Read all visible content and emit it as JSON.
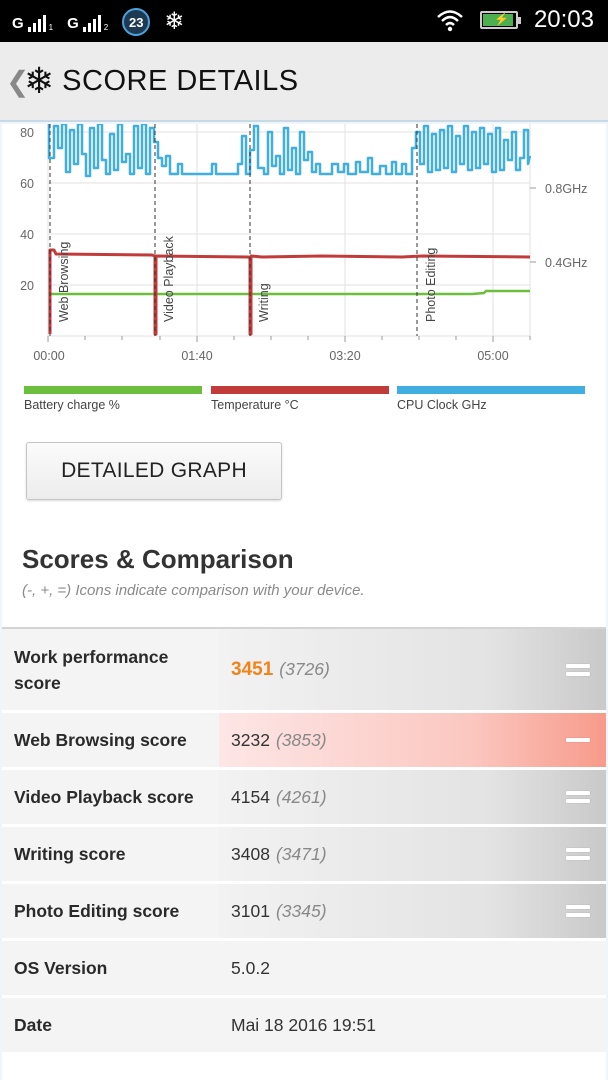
{
  "status_bar": {
    "signal1": "G",
    "signal2": "G",
    "roaming": "R",
    "badge": "23",
    "time": "20:03",
    "icons": [
      "signal-icon",
      "signal-icon",
      "notification-badge-icon",
      "snowflake-icon",
      "wifi-icon",
      "battery-charging-icon"
    ]
  },
  "app_bar": {
    "back": "❮",
    "title": "SCORE DETAILS",
    "icon": "snowflake-icon"
  },
  "chart_data": {
    "type": "line",
    "x_ticks": [
      "00:00",
      "01:40",
      "03:20",
      "05:00"
    ],
    "y_ticks": [
      "80",
      "60",
      "40",
      "20"
    ],
    "y2_ticks": [
      "0.8GHz",
      "0.4GHz"
    ],
    "markers": [
      "Web Browsing",
      "Video Playback",
      "Writing",
      "Photo Editing"
    ],
    "series": [
      {
        "name": "Battery charge %",
        "color": "#6cbf3c"
      },
      {
        "name": "Temperature °C",
        "color": "#c23b3b"
      },
      {
        "name": "CPU Clock GHz",
        "color": "#40aee0"
      }
    ]
  },
  "detailed_graph_button": "DETAILED GRAPH",
  "section": {
    "title": "Scores & Comparison",
    "subtitle": "(-, +, =) Icons indicate comparison with your device."
  },
  "rows": [
    {
      "label": "Work performance score",
      "value": "3451",
      "ref": "(3726)",
      "icon": "equal-icon"
    },
    {
      "label": "Web Browsing score",
      "value": "3232",
      "ref": "(3853)",
      "icon": "minus-icon"
    },
    {
      "label": "Video Playback score",
      "value": "4154",
      "ref": "(4261)",
      "icon": "equal-icon"
    },
    {
      "label": "Writing score",
      "value": "3408",
      "ref": "(3471)",
      "icon": "equal-icon"
    },
    {
      "label": "Photo Editing score",
      "value": "3101",
      "ref": "(3345)",
      "icon": "equal-icon"
    },
    {
      "label": "OS Version",
      "value": "5.0.2"
    },
    {
      "label": "Date",
      "value": "Mai 18 2016 19:51"
    }
  ]
}
